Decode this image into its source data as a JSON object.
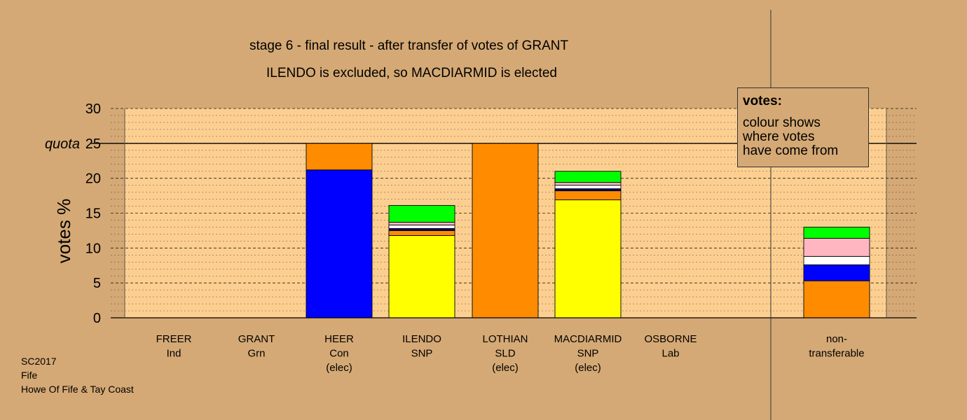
{
  "title_line1": "stage 6 - final result - after transfer of votes of GRANT",
  "title_line2": "ILENDO is excluded, so MACDIARMID is elected",
  "legend": {
    "heading": "votes:",
    "lines": [
      "colour shows",
      "where votes",
      "have come from"
    ]
  },
  "caption": [
    "SC2017",
    "Fife",
    "Howe Of Fife & Tay Coast"
  ],
  "colors": {
    "background": "#d5a975",
    "plot_area": "#fccf91",
    "snp": "#ffff00",
    "sld": "#ff8c00",
    "con": "#0000ff",
    "lab": "#ffffff",
    "ind": "#ffb6c1",
    "grn": "#00ff00",
    "navy_stripe": "#000080"
  },
  "chart_data": {
    "type": "bar",
    "stacked": true,
    "ylabel": "votes %",
    "ylim": [
      0,
      30
    ],
    "yticks": [
      0,
      5,
      10,
      15,
      20,
      25,
      30
    ],
    "quota_label": "quota",
    "quota": 25,
    "grid": true,
    "legend_position": "top-right",
    "categories": [
      {
        "label": [
          "FREER",
          "Ind"
        ],
        "segments": []
      },
      {
        "label": [
          "GRANT",
          "Grn"
        ],
        "segments": []
      },
      {
        "label": [
          "HEER",
          "Con",
          "(elec)"
        ],
        "segments": [
          {
            "source": "con",
            "color": "#0000ff",
            "value": 21.2
          },
          {
            "source": "sld",
            "color": "#ff8c00",
            "value": 3.8
          }
        ]
      },
      {
        "label": [
          "ILENDO",
          "SNP"
        ],
        "segments": [
          {
            "source": "snp",
            "color": "#ffff00",
            "value": 11.8
          },
          {
            "source": "sld",
            "color": "#ff8c00",
            "value": 0.7
          },
          {
            "source": "con",
            "color": "#000080",
            "value": 0.3
          },
          {
            "source": "lab",
            "color": "#ffffff",
            "value": 0.5
          },
          {
            "source": "ind",
            "color": "#ffb6c1",
            "value": 0.4
          },
          {
            "source": "grn",
            "color": "#00ff00",
            "value": 2.4
          }
        ]
      },
      {
        "label": [
          "LOTHIAN",
          "SLD",
          "(elec)"
        ],
        "segments": [
          {
            "source": "sld",
            "color": "#ff8c00",
            "value": 25
          }
        ]
      },
      {
        "label": [
          "MACDIARMID",
          "SNP",
          "(elec)"
        ],
        "segments": [
          {
            "source": "snp",
            "color": "#ffff00",
            "value": 16.9
          },
          {
            "source": "sld",
            "color": "#ff8c00",
            "value": 1.3
          },
          {
            "source": "con",
            "color": "#000080",
            "value": 0.3
          },
          {
            "source": "lab",
            "color": "#ffffff",
            "value": 0.5
          },
          {
            "source": "ind",
            "color": "#ffb6c1",
            "value": 0.4
          },
          {
            "source": "grn",
            "color": "#00ff00",
            "value": 1.6
          }
        ]
      },
      {
        "label": [
          "OSBORNE",
          "Lab"
        ],
        "segments": []
      },
      {
        "label": [
          "non-",
          "transferable"
        ],
        "segments": [
          {
            "source": "sld",
            "color": "#ff8c00",
            "value": 5.3
          },
          {
            "source": "con",
            "color": "#0000ff",
            "value": 2.3
          },
          {
            "source": "lab",
            "color": "#ffffff",
            "value": 1.2
          },
          {
            "source": "ind",
            "color": "#ffb6c1",
            "value": 2.6
          },
          {
            "source": "grn",
            "color": "#00ff00",
            "value": 1.6
          }
        ]
      }
    ]
  }
}
